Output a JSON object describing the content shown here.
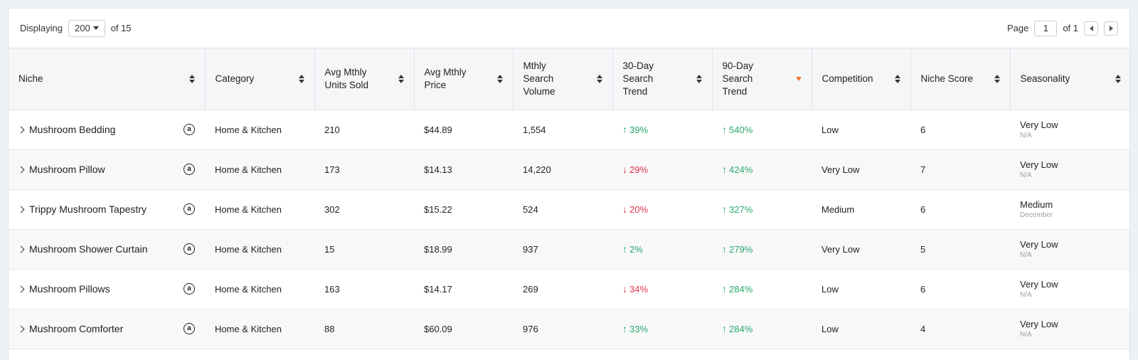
{
  "toolbar": {
    "displaying_label": "Displaying",
    "page_size": "200",
    "of_total": "of 15",
    "page_label": "Page",
    "page_value": "1",
    "of_pages": "of 1"
  },
  "columns": [
    "Niche",
    "Category",
    "Avg Mthly Units Sold",
    "Avg Mthly Price",
    "Mthly Search Volume",
    "30-Day Search Trend",
    "90-Day Search Trend",
    "Competition",
    "Niche Score",
    "Seasonality"
  ],
  "rows": [
    {
      "niche": "Mushroom Bedding",
      "category": "Home & Kitchen",
      "units": "210",
      "price": "$44.89",
      "volume": "1,554",
      "trend30": {
        "dir": "up",
        "value": "39%"
      },
      "trend90": {
        "dir": "up",
        "value": "540%"
      },
      "competition": "Low",
      "score": "6",
      "seasonality": "Very Low",
      "season_sub": "N/A"
    },
    {
      "niche": "Mushroom Pillow",
      "category": "Home & Kitchen",
      "units": "173",
      "price": "$14.13",
      "volume": "14,220",
      "trend30": {
        "dir": "down",
        "value": "29%"
      },
      "trend90": {
        "dir": "up",
        "value": "424%"
      },
      "competition": "Very Low",
      "score": "7",
      "seasonality": "Very Low",
      "season_sub": "N/A"
    },
    {
      "niche": "Trippy Mushroom Tapestry",
      "category": "Home & Kitchen",
      "units": "302",
      "price": "$15.22",
      "volume": "524",
      "trend30": {
        "dir": "down",
        "value": "20%"
      },
      "trend90": {
        "dir": "up",
        "value": "327%"
      },
      "competition": "Medium",
      "score": "6",
      "seasonality": "Medium",
      "season_sub": "December"
    },
    {
      "niche": "Mushroom Shower Curtain",
      "category": "Home & Kitchen",
      "units": "15",
      "price": "$18.99",
      "volume": "937",
      "trend30": {
        "dir": "up",
        "value": "2%"
      },
      "trend90": {
        "dir": "up",
        "value": "279%"
      },
      "competition": "Very Low",
      "score": "5",
      "seasonality": "Very Low",
      "season_sub": "N/A"
    },
    {
      "niche": "Mushroom Pillows",
      "category": "Home & Kitchen",
      "units": "163",
      "price": "$14.17",
      "volume": "269",
      "trend30": {
        "dir": "down",
        "value": "34%"
      },
      "trend90": {
        "dir": "up",
        "value": "284%"
      },
      "competition": "Low",
      "score": "6",
      "seasonality": "Very Low",
      "season_sub": "N/A"
    },
    {
      "niche": "Mushroom Comforter",
      "category": "Home & Kitchen",
      "units": "88",
      "price": "$60.09",
      "volume": "976",
      "trend30": {
        "dir": "up",
        "value": "33%"
      },
      "trend90": {
        "dir": "up",
        "value": "284%"
      },
      "competition": "Low",
      "score": "4",
      "seasonality": "Very Low",
      "season_sub": "N/A"
    }
  ],
  "icons": {
    "amazon": "a",
    "trend_up": "↑",
    "trend_down": "↓"
  },
  "colors": {
    "trend_up": "#27a86b",
    "trend_down": "#e0334c",
    "active_sort": "#f0772e"
  }
}
